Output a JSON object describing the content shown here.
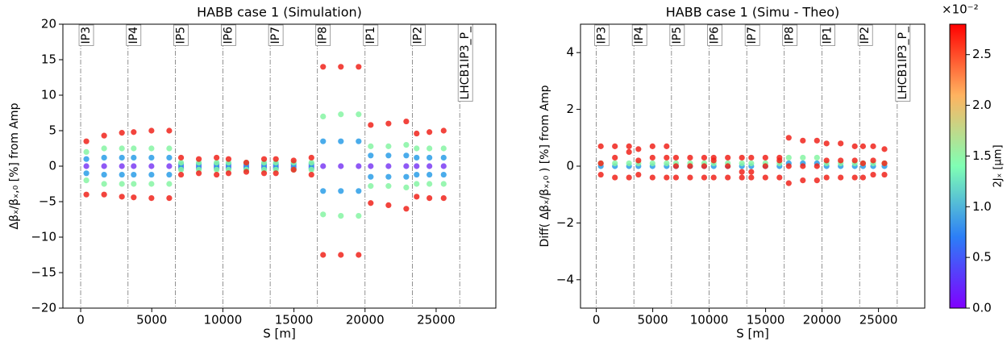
{
  "chart_data": [
    {
      "type": "scatter",
      "title": "HABB case 1 (Simulation)",
      "x_label": "S [m]",
      "y_label": "Δβₓ/βₓ,₀ [%] from Amp",
      "xlim": [
        -1250,
        29200
      ],
      "ylim": [
        -20,
        20
      ],
      "xticks": [
        0,
        5000,
        10000,
        15000,
        20000,
        25000
      ],
      "yticks": [
        {
          "value": -20,
          "label": "−20"
        },
        {
          "value": -15,
          "label": "−15"
        },
        {
          "value": -10,
          "label": "−10"
        },
        {
          "value": -5,
          "label": "−5"
        },
        0,
        5,
        10,
        15,
        20
      ],
      "markers": [
        {
          "label": "IP3",
          "x": 0
        },
        {
          "label": "IP4",
          "x": 3330
        },
        {
          "label": "IP5",
          "x": 6660
        },
        {
          "label": "IP6",
          "x": 10000
        },
        {
          "label": "IP7",
          "x": 13330
        },
        {
          "label": "IP8",
          "x": 16650
        },
        {
          "label": "IP1",
          "x": 20000
        },
        {
          "label": "IP2",
          "x": 23330
        },
        {
          "label": "LHCB1IP3_P_",
          "x": 26660
        }
      ],
      "x": [
        400,
        1650,
        2900,
        3730,
        4980,
        6230,
        7060,
        8310,
        9560,
        10400,
        11650,
        12900,
        13730,
        14980,
        16230,
        17050,
        18300,
        19550,
        20400,
        21650,
        22900,
        23630,
        24530,
        25530
      ],
      "series": [
        {
          "color": "#7b3cf3",
          "values": [
            0,
            0,
            0,
            0,
            0,
            0,
            0,
            0,
            0,
            0,
            0,
            0,
            0,
            0,
            0,
            0,
            0,
            0,
            0,
            0,
            0,
            0,
            0,
            0
          ]
        },
        {
          "color": "#2a9de8",
          "values": [
            1,
            1.2,
            1.2,
            1.2,
            1.2,
            1.2,
            0.3,
            0.3,
            0.3,
            0.3,
            0.3,
            0.3,
            0.3,
            0.3,
            0.3,
            3.5,
            3.5,
            3.5,
            1.5,
            1.5,
            1.5,
            1.2,
            1.2,
            1.2
          ]
        },
        {
          "color": "#2a9de8",
          "values": [
            -1,
            -1.2,
            -1.2,
            -1.2,
            -1.2,
            -1.2,
            -0.3,
            -0.3,
            -0.3,
            -0.3,
            -0.3,
            -0.3,
            -0.3,
            -0.3,
            -0.3,
            -3.5,
            -3.5,
            -3.5,
            -1.5,
            -1.5,
            -1.5,
            -1.2,
            -1.2,
            -1.2
          ]
        },
        {
          "color": "#86f5a3",
          "values": [
            2,
            2.5,
            2.5,
            2.5,
            2.5,
            2.5,
            0.5,
            0.5,
            0.5,
            0.5,
            0.5,
            0.5,
            0.5,
            0.5,
            0.5,
            7,
            7.3,
            7.3,
            2.8,
            2.8,
            3,
            2.5,
            2.5,
            2.5
          ]
        },
        {
          "color": "#86f5a3",
          "values": [
            -2,
            -2.5,
            -2.5,
            -2.5,
            -2.5,
            -2.5,
            -0.5,
            -0.5,
            -0.5,
            -0.5,
            -0.5,
            -0.5,
            -0.5,
            -0.5,
            -0.5,
            -6.8,
            -7,
            -7,
            -2.8,
            -2.8,
            -3,
            -2.5,
            -2.5,
            -2.5
          ]
        },
        {
          "color": "#f0231b",
          "values": [
            3.5,
            4.3,
            4.7,
            4.8,
            5,
            5,
            1.2,
            1,
            1.2,
            1,
            0.5,
            1,
            1,
            0.8,
            1.2,
            14,
            14,
            14,
            5.8,
            6,
            6.3,
            4.6,
            4.8,
            5
          ]
        },
        {
          "color": "#f0231b",
          "values": [
            -4,
            -4,
            -4.3,
            -4.4,
            -4.5,
            -4.5,
            -1.2,
            -1,
            -1.2,
            -1,
            -0.8,
            -1,
            -1,
            -0.5,
            -1.2,
            -12.5,
            -12.5,
            -12.5,
            -5.2,
            -5.5,
            -6,
            -4.3,
            -4.5,
            -4.5
          ]
        }
      ]
    },
    {
      "type": "scatter",
      "title": "HABB case 1 (Simu - Theo)",
      "x_label": "S [m]",
      "y_label": "Diff( Δβₓ/βₓ,₀ ) [%] from Amp",
      "xlim": [
        -1400,
        29100
      ],
      "ylim": [
        -5,
        5
      ],
      "xticks": [
        0,
        5000,
        10000,
        15000,
        20000,
        25000
      ],
      "yticks": [
        {
          "value": -4,
          "label": "−4"
        },
        {
          "value": -2,
          "label": "−2"
        },
        0,
        2,
        4
      ],
      "markers": [
        {
          "label": "IP3",
          "x": 0
        },
        {
          "label": "IP4",
          "x": 3330
        },
        {
          "label": "IP5",
          "x": 6660
        },
        {
          "label": "IP6",
          "x": 10000
        },
        {
          "label": "IP7",
          "x": 13330
        },
        {
          "label": "IP8",
          "x": 16650
        },
        {
          "label": "IP1",
          "x": 20000
        },
        {
          "label": "IP2",
          "x": 23330
        },
        {
          "label": "LHCB1IP3_P_",
          "x": 26660
        }
      ],
      "x": [
        400,
        1650,
        2900,
        3730,
        4980,
        6230,
        7060,
        8310,
        9560,
        10400,
        11650,
        12900,
        13730,
        14980,
        16230,
        17050,
        18300,
        19550,
        20400,
        21650,
        22900,
        23630,
        24530,
        25530
      ],
      "series": [
        {
          "color": "#2a9de8",
          "values": [
            0,
            0,
            0,
            0,
            0,
            0,
            0,
            0,
            0,
            0,
            0,
            0,
            0,
            0,
            0,
            0.1,
            0.1,
            0.1,
            0,
            0,
            0,
            0,
            0,
            0
          ]
        },
        {
          "color": "#86f5a3",
          "values": [
            0.1,
            0.1,
            0.1,
            0.1,
            0.1,
            0.1,
            0.1,
            0.1,
            0.1,
            0.1,
            0.1,
            0.1,
            0.1,
            0.1,
            0.1,
            0.3,
            0.3,
            0.3,
            0.1,
            0.1,
            0.1,
            0.1,
            0.1,
            0.1
          ]
        },
        {
          "color": "#f0231b",
          "values": [
            0.7,
            0.7,
            0.7,
            0.6,
            0.7,
            0.7,
            0.3,
            0.3,
            0.3,
            0.3,
            0.3,
            0.3,
            0.3,
            0.3,
            0.3,
            1,
            0.9,
            0.9,
            0.8,
            0.8,
            0.7,
            0.7,
            0.7,
            0.6
          ]
        },
        {
          "color": "#f0231b",
          "values": [
            0.1,
            0.3,
            0.5,
            0.2,
            0.3,
            0.3,
            0,
            0,
            0,
            0.2,
            0,
            -0.2,
            -0.2,
            0,
            0.2,
            0,
            0,
            0,
            0.2,
            0.2,
            0.2,
            0.1,
            0.2,
            0.1
          ]
        },
        {
          "color": "#f0231b",
          "values": [
            -0.3,
            -0.4,
            -0.4,
            -0.3,
            -0.4,
            -0.4,
            -0.4,
            -0.4,
            -0.4,
            -0.4,
            -0.4,
            -0.4,
            -0.4,
            -0.4,
            -0.4,
            -0.6,
            -0.5,
            -0.5,
            -0.4,
            -0.4,
            -0.4,
            -0.4,
            -0.3,
            -0.3
          ]
        }
      ],
      "colorbar": {
        "colormap": "rainbow",
        "label": "2Jₓ [μm]",
        "offset_label": "×10⁻²",
        "lim": [
          0,
          2.8
        ],
        "ticks": [
          {
            "value": 0,
            "label": "0.0"
          },
          {
            "value": 0.5,
            "label": "0.5"
          },
          {
            "value": 1,
            "label": "1.0"
          },
          {
            "value": 1.5,
            "label": "1.5"
          },
          {
            "value": 2,
            "label": "2.0"
          },
          {
            "value": 2.5,
            "label": "2.5"
          }
        ]
      }
    }
  ]
}
